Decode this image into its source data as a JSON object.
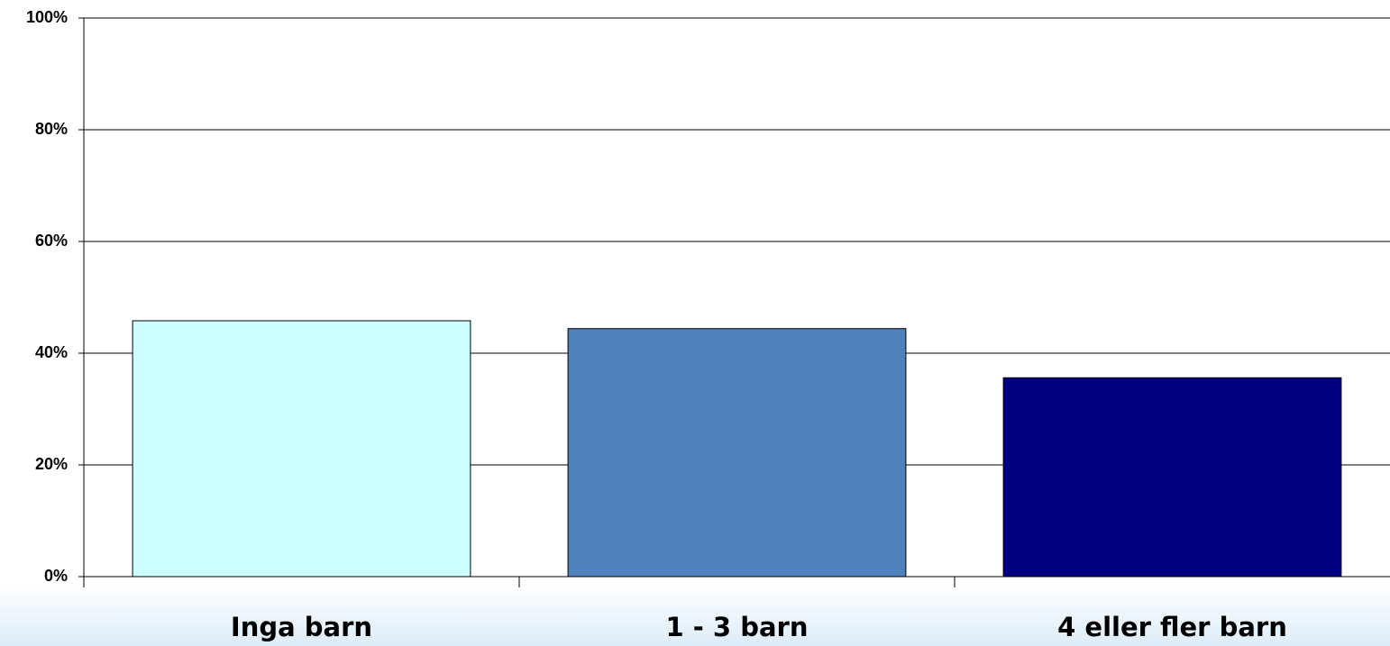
{
  "chart_data": {
    "type": "bar",
    "categories": [
      "Inga barn",
      "1 - 3 barn",
      "4 eller fler barn"
    ],
    "values": [
      45.8,
      44.4,
      35.6
    ],
    "colors": [
      "#ccffff",
      "#4f81bd",
      "#000080"
    ],
    "ylim": [
      0,
      100
    ],
    "yticks": [
      {
        "value": 0,
        "label": "0%"
      },
      {
        "value": 20,
        "label": "20%"
      },
      {
        "value": 40,
        "label": "40%"
      },
      {
        "value": 60,
        "label": "60%"
      },
      {
        "value": 80,
        "label": "80%"
      },
      {
        "value": 100,
        "label": "100%"
      }
    ],
    "grid": true
  }
}
